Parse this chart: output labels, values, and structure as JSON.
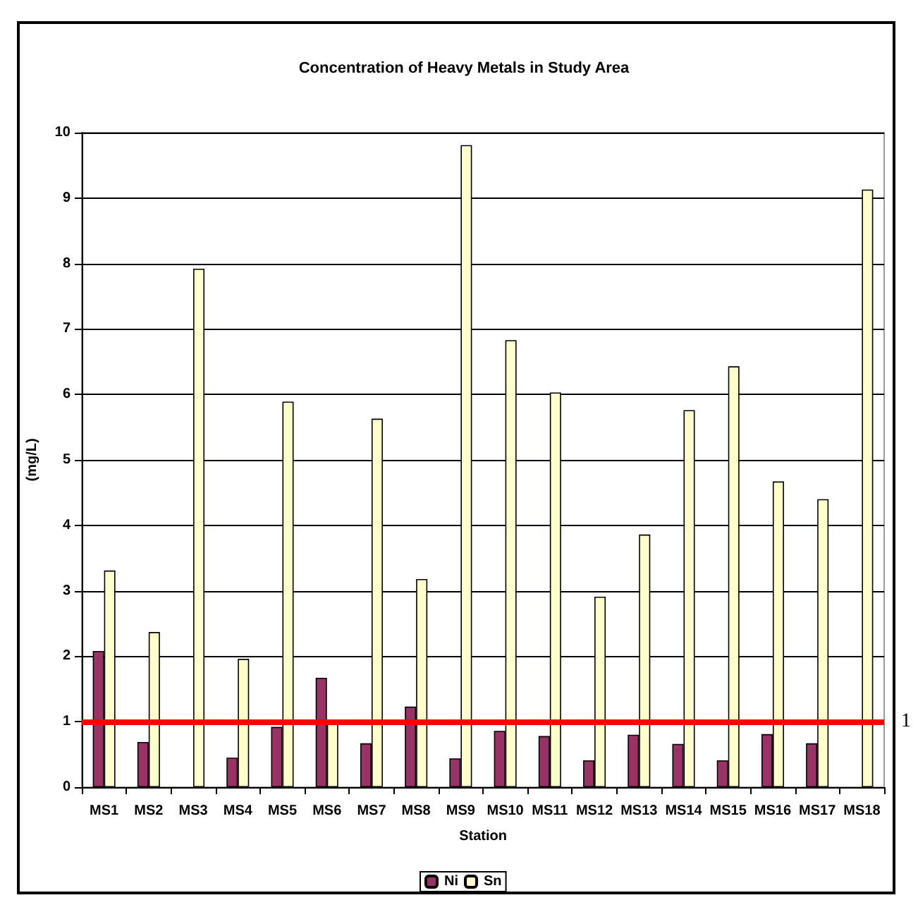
{
  "chart_data": {
    "type": "bar",
    "title": "Concentration of Heavy Metals in Study Area",
    "xlabel": "Station",
    "ylabel": "(mg/L)",
    "categories": [
      "MS1",
      "MS2",
      "MS3",
      "MS4",
      "MS5",
      "MS6",
      "MS7",
      "MS8",
      "MS9",
      "MS10",
      "MS11",
      "MS12",
      "MS13",
      "MS14",
      "MS15",
      "MS16",
      "MS17",
      "MS18"
    ],
    "series": [
      {
        "name": "Ni",
        "color": "#993366",
        "values": [
          2.08,
          0.69,
          null,
          0.45,
          0.92,
          1.67,
          0.67,
          1.23,
          0.44,
          0.86,
          0.78,
          0.41,
          0.8,
          0.66,
          0.41,
          0.81,
          0.67,
          null
        ]
      },
      {
        "name": "Sn",
        "color": "#ffffcc",
        "values": [
          3.31,
          2.37,
          7.92,
          1.96,
          5.89,
          1.0,
          5.63,
          3.18,
          9.81,
          6.83,
          6.03,
          2.91,
          3.86,
          5.76,
          6.43,
          4.67,
          4.4,
          9.13
        ]
      }
    ],
    "ylim": [
      0,
      10
    ],
    "yticks": [
      0,
      1,
      2,
      3,
      4,
      5,
      6,
      7,
      8,
      9,
      10
    ],
    "grid": "y",
    "legend": "bottom",
    "ref_lines": [
      {
        "axis": "y",
        "value": 1,
        "label": "1",
        "color": "#ff0000"
      }
    ]
  }
}
